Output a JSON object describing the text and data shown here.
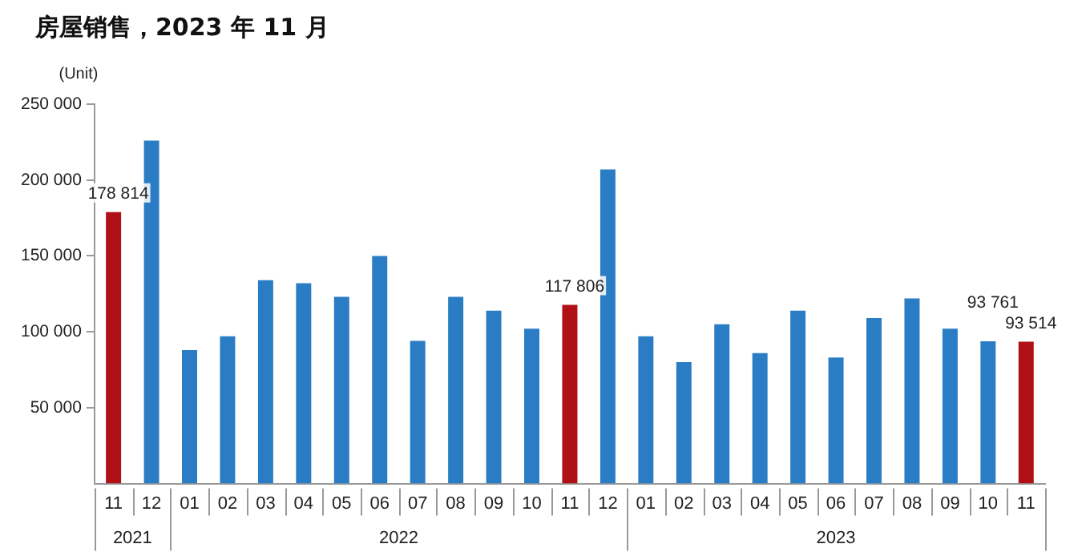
{
  "chart_data": {
    "type": "bar",
    "title": "房屋销售，2023 年 11 月",
    "ylabel": "(Unit)",
    "categories": [
      "11",
      "12",
      "01",
      "02",
      "03",
      "04",
      "05",
      "06",
      "07",
      "08",
      "09",
      "10",
      "11",
      "12",
      "01",
      "02",
      "03",
      "04",
      "05",
      "06",
      "07",
      "08",
      "09",
      "10",
      "11"
    ],
    "values": [
      178814,
      226000,
      88000,
      97000,
      134000,
      132000,
      123000,
      150000,
      94000,
      123000,
      114000,
      102000,
      117806,
      207000,
      97000,
      80000,
      105000,
      86000,
      114000,
      83000,
      109000,
      122000,
      102000,
      93761,
      93514
    ],
    "colors": [
      "#b01116",
      "#2a7dc4",
      "#2a7dc4",
      "#2a7dc4",
      "#2a7dc4",
      "#2a7dc4",
      "#2a7dc4",
      "#2a7dc4",
      "#2a7dc4",
      "#2a7dc4",
      "#2a7dc4",
      "#2a7dc4",
      "#b01116",
      "#2a7dc4",
      "#2a7dc4",
      "#2a7dc4",
      "#2a7dc4",
      "#2a7dc4",
      "#2a7dc4",
      "#2a7dc4",
      "#2a7dc4",
      "#2a7dc4",
      "#2a7dc4",
      "#2a7dc4",
      "#b01116"
    ],
    "value_labels": [
      "178 814",
      null,
      null,
      null,
      null,
      null,
      null,
      null,
      null,
      null,
      null,
      null,
      "117 806",
      null,
      null,
      null,
      null,
      null,
      null,
      null,
      null,
      null,
      null,
      "93 761",
      "93 514"
    ],
    "annotations": [
      "2021",
      "2022",
      "2023"
    ],
    "ylim": [
      0,
      250000
    ],
    "yticks": [
      {
        "value": 50000,
        "label": "50 000"
      },
      {
        "value": 100000,
        "label": "100 000"
      },
      {
        "value": 150000,
        "label": "150 000"
      },
      {
        "value": 200000,
        "label": "200 000"
      },
      {
        "value": 250000,
        "label": "250 000"
      }
    ],
    "grid": false,
    "legend": false
  }
}
